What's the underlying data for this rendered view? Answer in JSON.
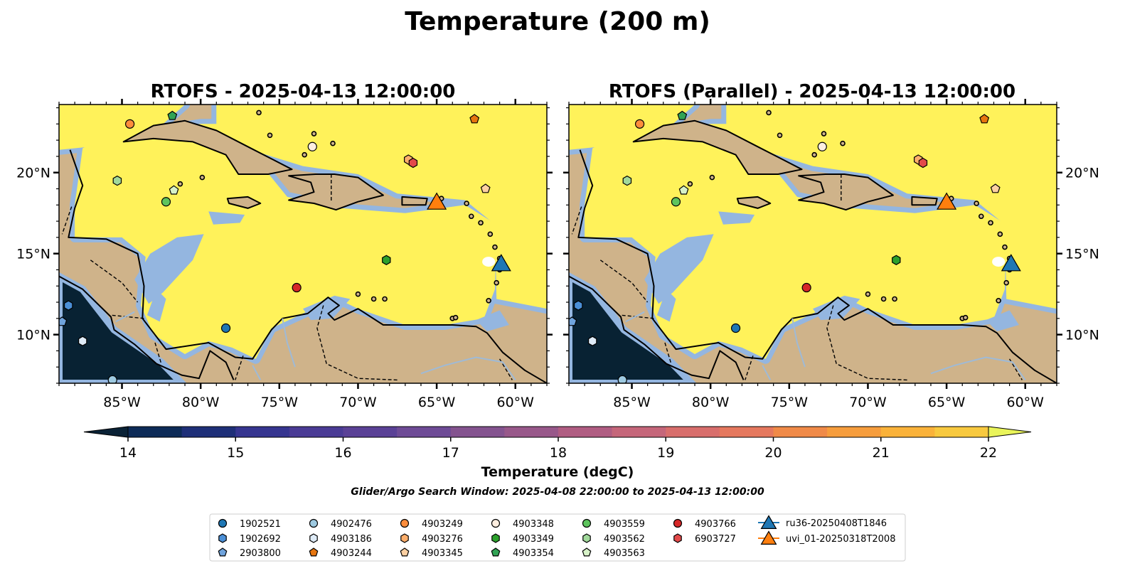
{
  "figure": {
    "suptitle": "Temperature (200 m)",
    "search_window": "Glider/Argo Search Window: 2025-04-08 22:00:00 to 2025-04-13 12:00:00"
  },
  "panels": [
    {
      "title": "RTOFS - 2025-04-13 12:00:00"
    },
    {
      "title": "RTOFS (Parallel) - 2025-04-13 12:00:00"
    }
  ],
  "colors": {
    "land": "#cfb38a",
    "shelf": "#94b6e0",
    "deep": "#082233",
    "cmap": [
      "#0a2236",
      "#0d2b57",
      "#1e2f78",
      "#363590",
      "#4a3b95",
      "#5a4196",
      "#6e4b96",
      "#84538f",
      "#98588a",
      "#b05d82",
      "#c5667a",
      "#d86e6c",
      "#e5785e",
      "#f08a48",
      "#f69d3d",
      "#fab23a",
      "#f8c93f",
      "#eee359",
      "#e9f45a"
    ]
  },
  "chart_data": {
    "type": "heatmap",
    "xlim": [
      -89,
      -58
    ],
    "ylim": [
      7,
      24.2
    ],
    "x_ticks": [
      -85,
      -80,
      -75,
      -70,
      -65,
      -60
    ],
    "x_tick_labels": [
      "85°W",
      "80°W",
      "75°W",
      "70°W",
      "65°W",
      "60°W"
    ],
    "y_ticks": [
      10,
      15,
      20
    ],
    "y_tick_labels": [
      "10°N",
      "15°N",
      "20°N"
    ],
    "colorbar": {
      "label": "Temperature (degC)",
      "min": 14,
      "max": 22,
      "step": 0.5,
      "extend": "both",
      "ticks": [
        14,
        15,
        16,
        17,
        18,
        19,
        20,
        21,
        22
      ],
      "tick_labels": [
        "14",
        "15",
        "16",
        "17",
        "18",
        "19",
        "20",
        "21",
        "22"
      ]
    },
    "argo_floats": [
      {
        "id": "1902521",
        "marker": "circle",
        "color": "#1f77b4",
        "lon": -78.4,
        "lat": 10.4
      },
      {
        "id": "1902692",
        "marker": "hexagon",
        "color": "#4b8fd6",
        "lon": -88.4,
        "lat": 11.8
      },
      {
        "id": "2903800",
        "marker": "pentagon",
        "color": "#6fa3dc",
        "lon": -88.8,
        "lat": 10.8
      },
      {
        "id": "4902476",
        "marker": "circle",
        "color": "#9ecae1",
        "lon": -85.6,
        "lat": 7.2
      },
      {
        "id": "4903186",
        "marker": "hexagon",
        "color": "#deebf7",
        "lon": -87.5,
        "lat": 9.6
      },
      {
        "id": "4903244",
        "marker": "pentagon",
        "color": "#e6750f",
        "lon": -62.6,
        "lat": 23.3
      },
      {
        "id": "4903249",
        "marker": "circle",
        "color": "#fd8d3c",
        "lon": -84.5,
        "lat": 23.0
      },
      {
        "id": "4903276",
        "marker": "hexagon",
        "color": "#fdae6b",
        "lon": -66.8,
        "lat": 20.8
      },
      {
        "id": "4903345",
        "marker": "pentagon",
        "color": "#fdd0a2",
        "lon": -61.9,
        "lat": 19.0
      },
      {
        "id": "4903348",
        "marker": "circle",
        "color": "#feeee0",
        "lon": -72.9,
        "lat": 21.6
      },
      {
        "id": "4903349",
        "marker": "hexagon",
        "color": "#2ca02c",
        "lon": -68.2,
        "lat": 14.6
      },
      {
        "id": "4903354",
        "marker": "pentagon",
        "color": "#31a354",
        "lon": -81.8,
        "lat": 23.5
      },
      {
        "id": "4903559",
        "marker": "circle",
        "color": "#5dc45d",
        "lon": -82.2,
        "lat": 18.2
      },
      {
        "id": "4903562",
        "marker": "hexagon",
        "color": "#a1d99b",
        "lon": -85.3,
        "lat": 19.5
      },
      {
        "id": "4903563",
        "marker": "pentagon",
        "color": "#d7f2c8",
        "lon": -81.7,
        "lat": 18.9
      },
      {
        "id": "4903766",
        "marker": "circle",
        "color": "#d62728",
        "lon": -73.9,
        "lat": 12.9
      },
      {
        "id": "6903727",
        "marker": "hexagon",
        "color": "#e34a4a",
        "lon": -66.5,
        "lat": 20.6
      }
    ],
    "gliders": [
      {
        "id": "ru36-20250408T1846",
        "color": "#1f77b4",
        "lon": -60.9,
        "lat": 14.4
      },
      {
        "id": "uvi_01-20250318T2008",
        "color": "#ff7f0e",
        "lon": -65.0,
        "lat": 18.2
      }
    ]
  }
}
